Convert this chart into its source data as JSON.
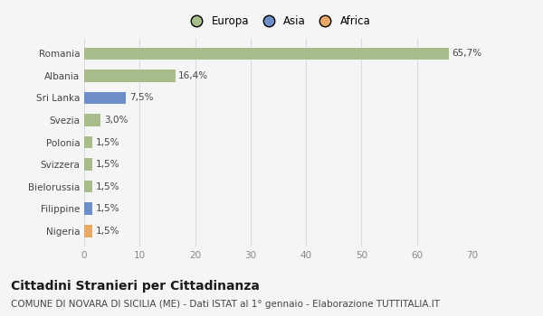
{
  "title": "Cittadini Stranieri per Cittadinanza",
  "subtitle": "COMUNE DI NOVARA DI SICILIA (ME) - Dati ISTAT al 1° gennaio - Elaborazione TUTTITALIA.IT",
  "categories": [
    "Nigeria",
    "Filippine",
    "Bielorussia",
    "Svizzera",
    "Polonia",
    "Svezia",
    "Sri Lanka",
    "Albania",
    "Romania"
  ],
  "values": [
    1.5,
    1.5,
    1.5,
    1.5,
    1.5,
    3.0,
    7.5,
    16.4,
    65.7
  ],
  "labels": [
    "1,5%",
    "1,5%",
    "1,5%",
    "1,5%",
    "1,5%",
    "3,0%",
    "7,5%",
    "16,4%",
    "65,7%"
  ],
  "colors": [
    "#e8a868",
    "#6e8ec8",
    "#a8bc8c",
    "#a8bc8c",
    "#a8bc8c",
    "#a8bc8c",
    "#6e8ec8",
    "#a8bc8c",
    "#a8bc8c"
  ],
  "legend_labels": [
    "Europa",
    "Asia",
    "Africa"
  ],
  "legend_colors": [
    "#a8bc8c",
    "#6e8ec8",
    "#e8a868"
  ],
  "xlim": [
    0,
    70
  ],
  "xticks": [
    0,
    10,
    20,
    30,
    40,
    50,
    60,
    70
  ],
  "background_color": "#f5f5f5",
  "plot_bg_color": "#f5f5f5",
  "grid_color": "#d8dce0",
  "bar_height": 0.55,
  "title_fontsize": 10,
  "subtitle_fontsize": 7.5,
  "label_fontsize": 7.5,
  "tick_fontsize": 7.5,
  "legend_fontsize": 8.5
}
